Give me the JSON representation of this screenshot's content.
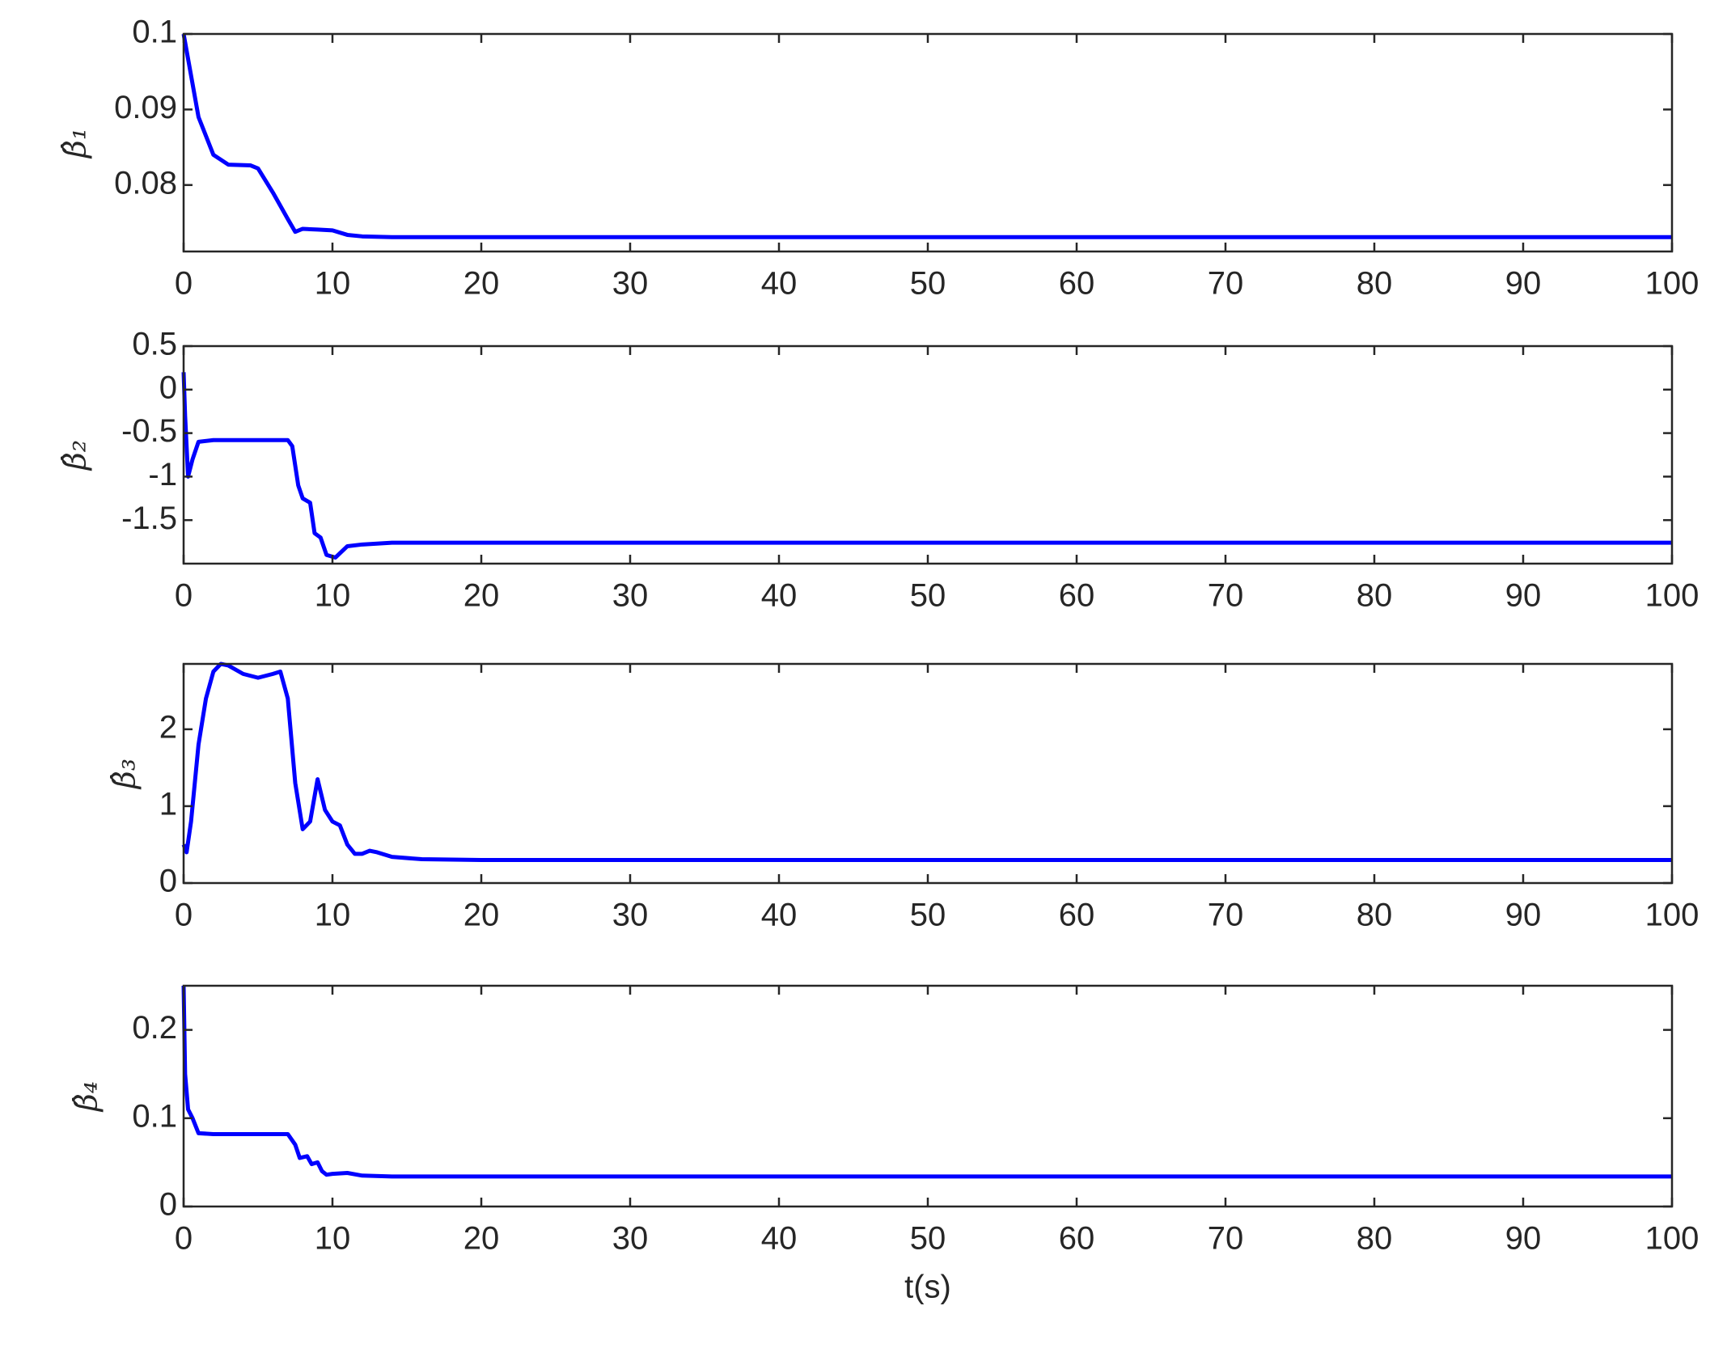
{
  "chart_data": [
    {
      "type": "line",
      "ylabel": "β̂₁",
      "color": "#0000ff",
      "x": [
        0,
        1,
        2,
        3,
        4.5,
        5,
        6,
        7,
        7.5,
        8,
        9,
        10,
        11,
        12,
        14,
        100
      ],
      "values": [
        0.1,
        0.089,
        0.084,
        0.0827,
        0.0826,
        0.0822,
        0.079,
        0.0755,
        0.0738,
        0.0742,
        0.0741,
        0.074,
        0.0734,
        0.0732,
        0.0731,
        0.0731
      ],
      "xlim": [
        0,
        100
      ],
      "xticks": [
        0,
        10,
        20,
        30,
        40,
        50,
        60,
        70,
        80,
        90,
        100
      ],
      "ylim": [
        0.0712,
        0.1
      ],
      "yticks": [
        0.08,
        0.09,
        0.1
      ]
    },
    {
      "type": "line",
      "ylabel": "β̂₂",
      "color": "#0000ff",
      "x": [
        0,
        0.1,
        0.3,
        0.6,
        1,
        2,
        7,
        7.3,
        7.7,
        8,
        8.5,
        8.8,
        9.2,
        9.6,
        10.2,
        11,
        12,
        14,
        100
      ],
      "values": [
        0.2,
        -0.3,
        -1.0,
        -0.8,
        -0.6,
        -0.58,
        -0.58,
        -0.65,
        -1.1,
        -1.25,
        -1.3,
        -1.65,
        -1.7,
        -1.9,
        -1.93,
        -1.8,
        -1.78,
        -1.76,
        -1.76
      ],
      "xlim": [
        0,
        100
      ],
      "xticks": [
        0,
        10,
        20,
        30,
        40,
        50,
        60,
        70,
        80,
        90,
        100
      ],
      "ylim": [
        -2,
        0.5
      ],
      "yticks": [
        -1.5,
        -1,
        -0.5,
        0,
        0.5
      ]
    },
    {
      "type": "line",
      "ylabel": "β̂₃",
      "color": "#0000ff",
      "x": [
        0,
        0.2,
        0.5,
        1,
        1.5,
        2,
        2.5,
        3,
        4,
        5,
        6,
        6.5,
        7,
        7.5,
        8,
        8.5,
        9,
        9.5,
        10,
        10.5,
        11,
        11.5,
        12,
        12.5,
        13,
        14,
        16,
        20,
        100
      ],
      "values": [
        0.5,
        0.4,
        0.8,
        1.8,
        2.4,
        2.75,
        2.85,
        2.83,
        2.72,
        2.67,
        2.72,
        2.75,
        2.4,
        1.3,
        0.7,
        0.8,
        1.35,
        0.95,
        0.8,
        0.75,
        0.5,
        0.38,
        0.38,
        0.42,
        0.4,
        0.34,
        0.31,
        0.3,
        0.3
      ],
      "xlim": [
        0,
        100
      ],
      "xticks": [
        0,
        10,
        20,
        30,
        40,
        50,
        60,
        70,
        80,
        90,
        100
      ],
      "ylim": [
        0,
        2.85
      ],
      "yticks": [
        0,
        1,
        2
      ]
    },
    {
      "type": "line",
      "ylabel": "β̂₄",
      "xlabel": "t(s)",
      "color": "#0000ff",
      "x": [
        0,
        0.1,
        0.3,
        0.6,
        1,
        2,
        7,
        7.5,
        7.8,
        8.3,
        8.6,
        9,
        9.3,
        9.6,
        10,
        11,
        12,
        14,
        100
      ],
      "values": [
        0.25,
        0.15,
        0.11,
        0.1,
        0.083,
        0.082,
        0.082,
        0.07,
        0.055,
        0.057,
        0.048,
        0.05,
        0.04,
        0.036,
        0.037,
        0.038,
        0.035,
        0.034,
        0.034
      ],
      "xlim": [
        0,
        100
      ],
      "xticks": [
        0,
        10,
        20,
        30,
        40,
        50,
        60,
        70,
        80,
        90,
        100
      ],
      "ylim": [
        0,
        0.25
      ],
      "yticks": [
        0,
        0.1,
        0.2
      ]
    }
  ]
}
